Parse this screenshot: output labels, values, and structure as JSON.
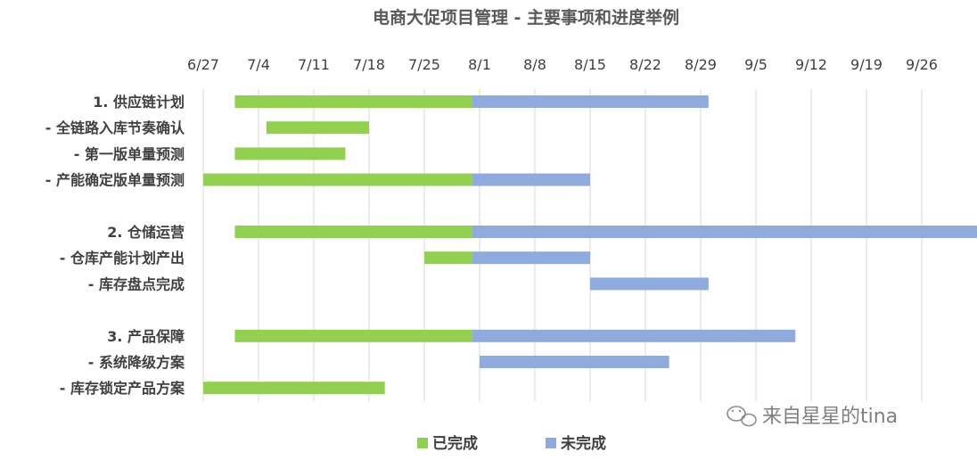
{
  "chart_data": {
    "type": "bar",
    "orientation": "horizontal",
    "stacked": true,
    "title": "电商大促项目管理 - 主要事项和进度举例",
    "xlabel": "",
    "ylabel": "",
    "xaxis_position": "top",
    "grid": true,
    "legend_placement": "bottom",
    "x_ticks": [
      "6/27",
      "7/4",
      "7/11",
      "7/18",
      "7/25",
      "8/1",
      "8/8",
      "8/15",
      "8/22",
      "8/29",
      "9/5",
      "9/12",
      "9/19",
      "9/26"
    ],
    "categories": [
      "1. 供应链计划",
      "- 全链路入库节奏确认",
      "- 第一版单量预测",
      "- 产能确定版单量预测",
      "",
      "2. 仓储运营",
      "- 仓库产能计划产出",
      "- 库存盘点完成",
      "",
      "3. 产品保障",
      "- 系统降级方案",
      "- 库存锁定产品方案"
    ],
    "series": [
      {
        "name": "已完成",
        "color": "#92d050",
        "ranges": [
          [
            "2022-07-01",
            "2022-07-31"
          ],
          [
            "2022-07-05",
            "2022-07-18"
          ],
          [
            "2022-07-01",
            "2022-07-15"
          ],
          [
            "2022-06-27",
            "2022-07-31"
          ],
          null,
          [
            "2022-07-01",
            "2022-07-31"
          ],
          [
            "2022-07-25",
            "2022-07-31"
          ],
          null,
          null,
          [
            "2022-07-01",
            "2022-07-31"
          ],
          null,
          [
            "2022-06-27",
            "2022-07-20"
          ]
        ]
      },
      {
        "name": "未完成",
        "color": "#8faadc",
        "ranges": [
          [
            "2022-07-31",
            "2022-08-30"
          ],
          null,
          null,
          [
            "2022-07-31",
            "2022-08-15"
          ],
          null,
          [
            "2022-07-31",
            "2022-10-04"
          ],
          [
            "2022-07-31",
            "2022-08-15"
          ],
          [
            "2022-08-15",
            "2022-08-30"
          ],
          null,
          [
            "2022-07-31",
            "2022-09-10"
          ],
          [
            "2022-08-01",
            "2022-08-25"
          ],
          null
        ]
      }
    ]
  },
  "watermark": {
    "icon": "wechat-icon",
    "text": "来自星星的tina"
  }
}
